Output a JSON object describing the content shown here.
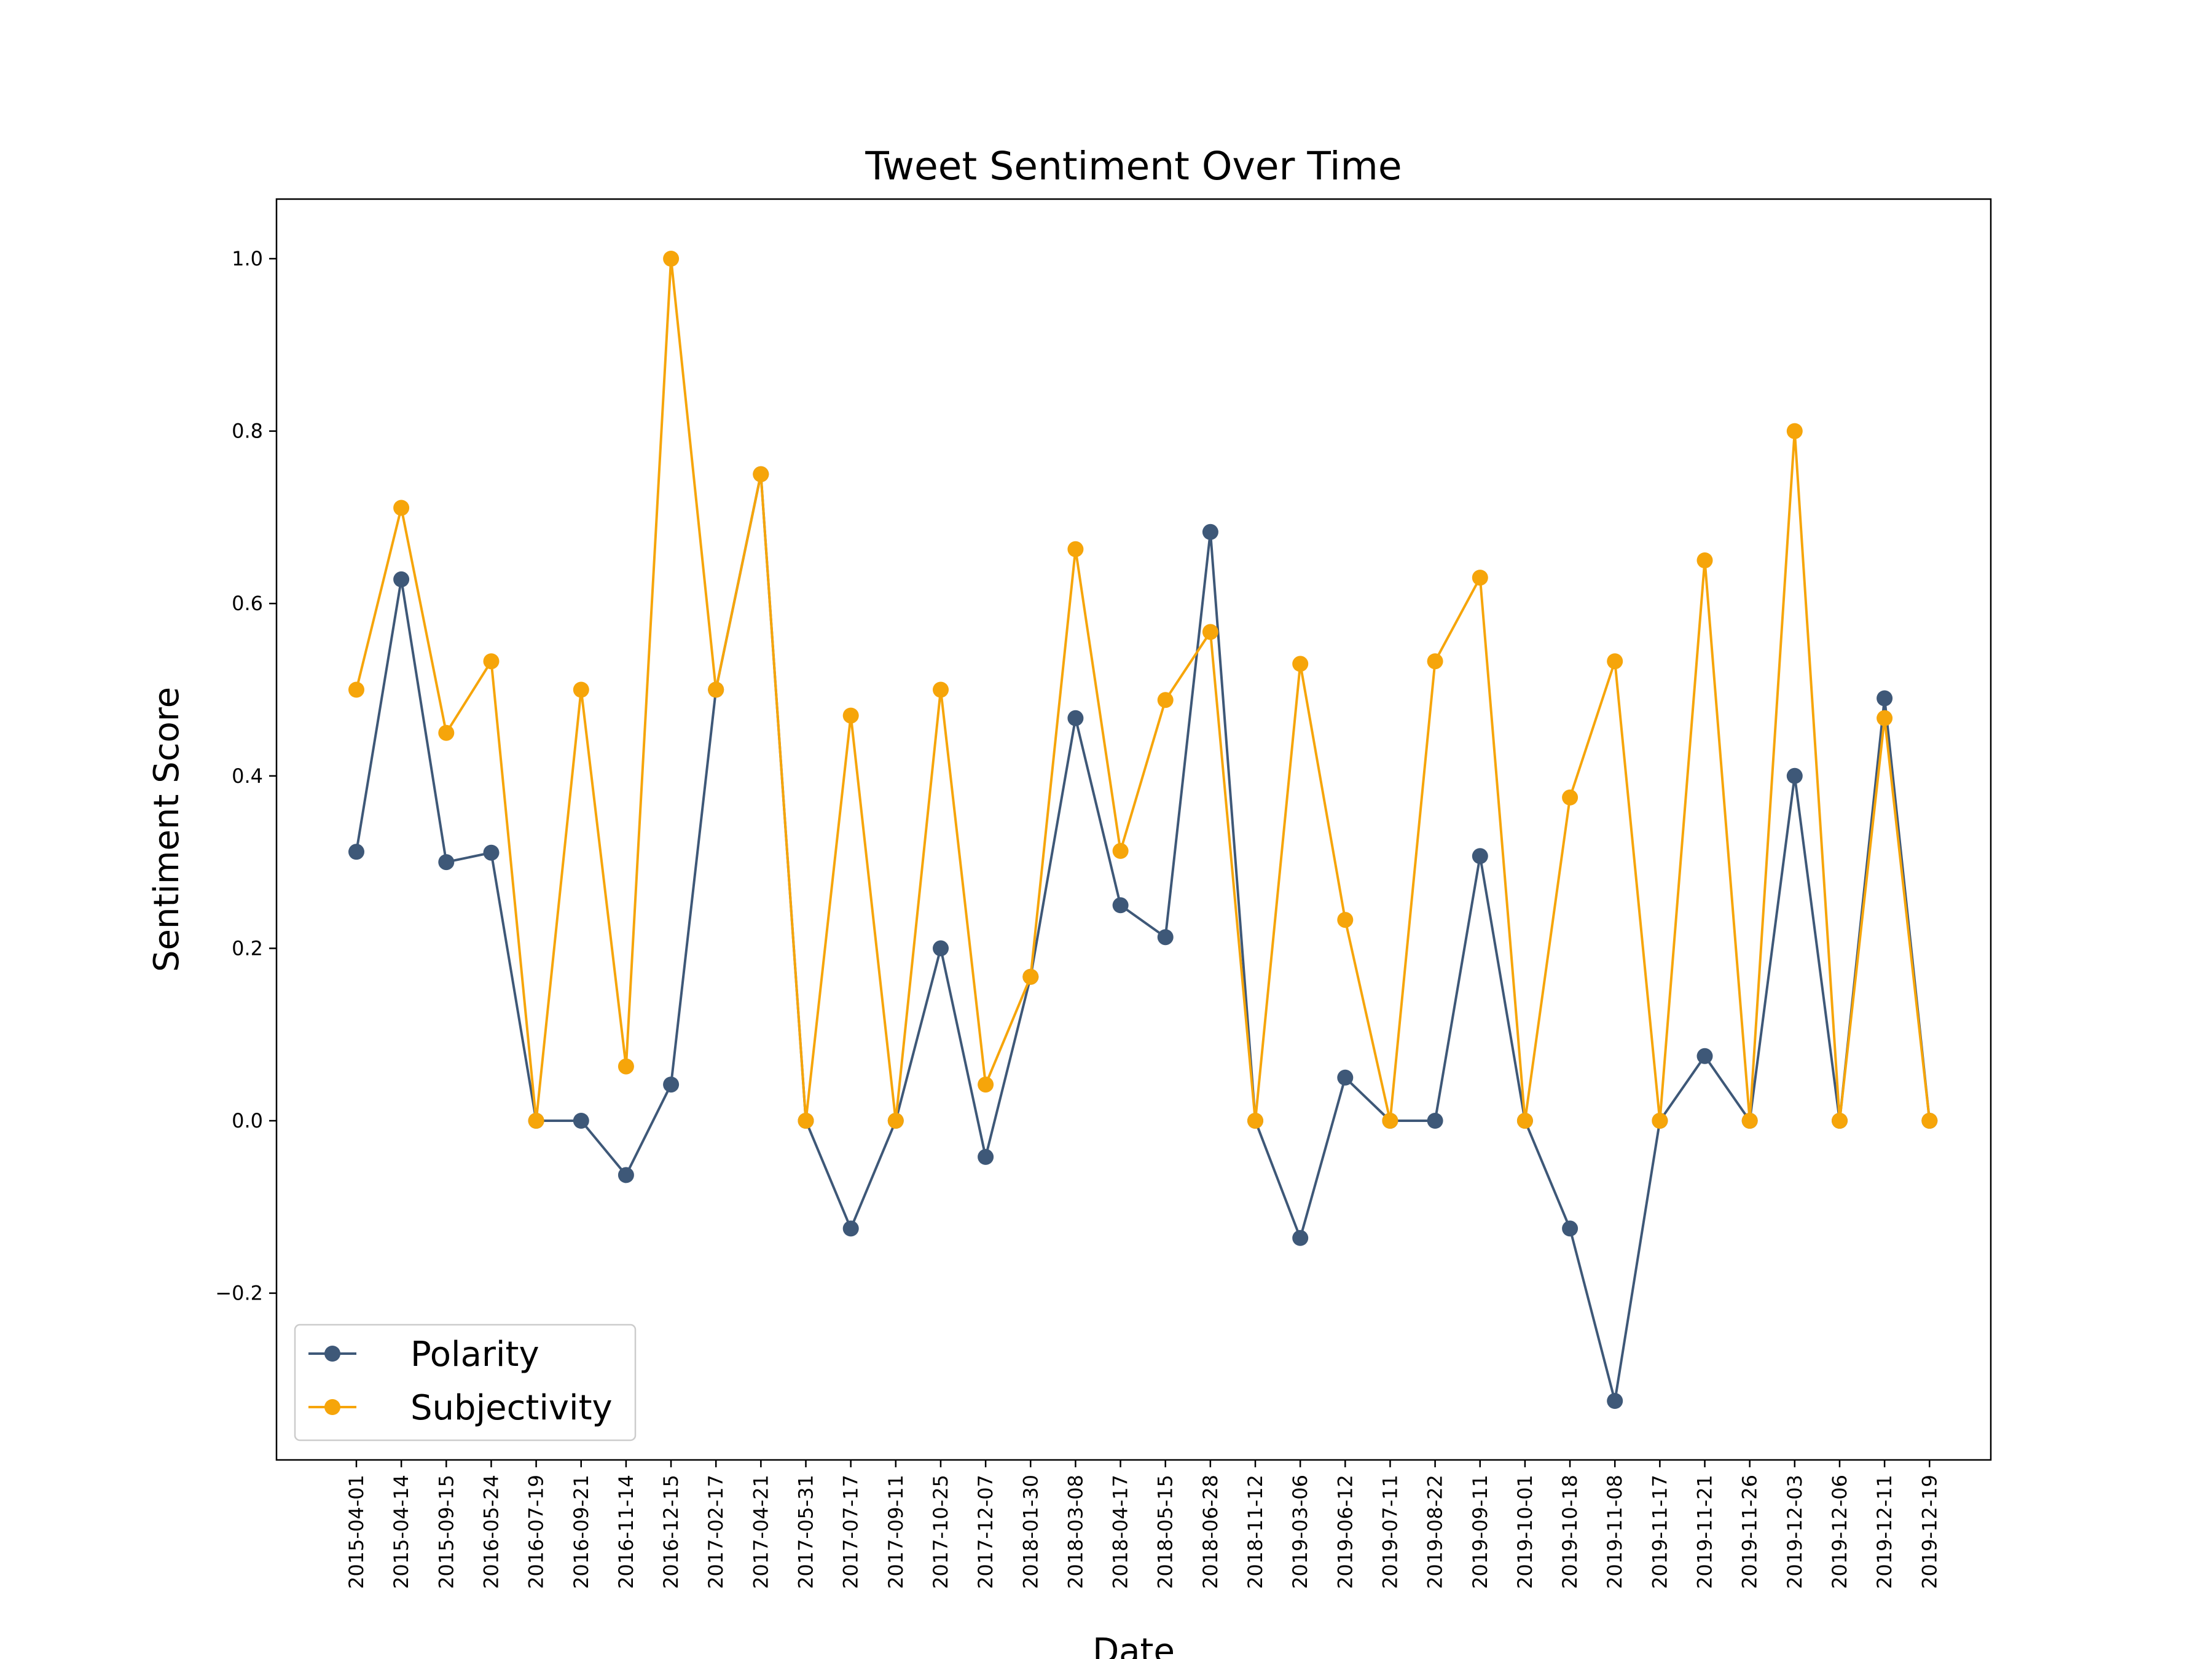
{
  "chart_data": {
    "type": "line",
    "title": "Tweet Sentiment Over Time",
    "xlabel": "Date",
    "ylabel": "Sentiment Score",
    "ylim": [
      -0.38,
      1.07
    ],
    "yticks": [
      -0.2,
      0.0,
      0.2,
      0.4,
      0.6,
      0.8,
      1.0
    ],
    "ytick_labels": [
      "−0.2",
      "0.0",
      "0.2",
      "0.4",
      "0.6",
      "0.8",
      "1.0"
    ],
    "grid": false,
    "legend_position": "lower-left",
    "categories": [
      "2015-04-01",
      "2015-04-14",
      "2015-09-15",
      "2016-05-24",
      "2016-07-19",
      "2016-09-21",
      "2016-11-14",
      "2016-12-15",
      "2017-02-17",
      "2017-04-21",
      "2017-05-31",
      "2017-07-17",
      "2017-09-11",
      "2017-10-25",
      "2017-12-07",
      "2018-01-30",
      "2018-03-08",
      "2018-04-17",
      "2018-05-15",
      "2018-06-28",
      "2018-11-12",
      "2019-03-06",
      "2019-06-12",
      "2019-07-11",
      "2019-08-22",
      "2019-09-11",
      "2019-10-01",
      "2019-10-18",
      "2019-11-08",
      "2019-11-17",
      "2019-11-21",
      "2019-11-26",
      "2019-12-03",
      "2019-12-06",
      "2019-12-11",
      "2019-12-19"
    ],
    "series": [
      {
        "name": "Polarity",
        "color": "#3e5878",
        "values": [
          0.312,
          0.628,
          0.3,
          0.311,
          0.0,
          0.0,
          -0.063,
          0.042,
          0.5,
          0.75,
          0.0,
          -0.125,
          0.0,
          0.2,
          -0.042,
          0.167,
          0.467,
          0.25,
          0.213,
          0.683,
          0.0,
          -0.136,
          0.05,
          0.0,
          0.0,
          0.307,
          0.0,
          -0.125,
          -0.325,
          0.0,
          0.075,
          0.0,
          0.4,
          0.0,
          0.49,
          0.0
        ]
      },
      {
        "name": "Subjectivity",
        "color": "#f6a50a",
        "values": [
          0.5,
          0.711,
          0.45,
          0.533,
          0.0,
          0.5,
          0.063,
          1.0,
          0.5,
          0.75,
          0.0,
          0.47,
          0.0,
          0.5,
          0.042,
          0.167,
          0.663,
          0.313,
          0.488,
          0.567,
          0.0,
          0.53,
          0.233,
          0.0,
          0.533,
          0.63,
          0.0,
          0.375,
          0.533,
          0.0,
          0.65,
          0.0,
          0.8,
          0.0,
          0.467,
          0.0
        ]
      }
    ]
  }
}
